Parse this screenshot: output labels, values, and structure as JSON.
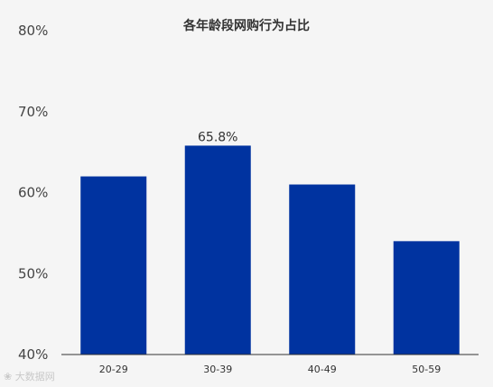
{
  "chart_data": {
    "type": "bar",
    "title": "各年龄段网购行为占比",
    "categories": [
      "20-29",
      "30-39",
      "40-49",
      "50-59"
    ],
    "values": [
      62.0,
      65.8,
      61.0,
      54.0
    ],
    "data_labels": [
      null,
      "65.8%",
      null,
      null
    ],
    "ylim": [
      40,
      80
    ],
    "yticks": [
      40,
      50,
      60,
      70,
      80
    ],
    "ytick_labels": [
      "40%",
      "50%",
      "60%",
      "70%",
      "80%"
    ],
    "xlabel": "",
    "ylabel": "",
    "grid": false,
    "bar_color": "#0033A0"
  },
  "watermark": "大数据网"
}
